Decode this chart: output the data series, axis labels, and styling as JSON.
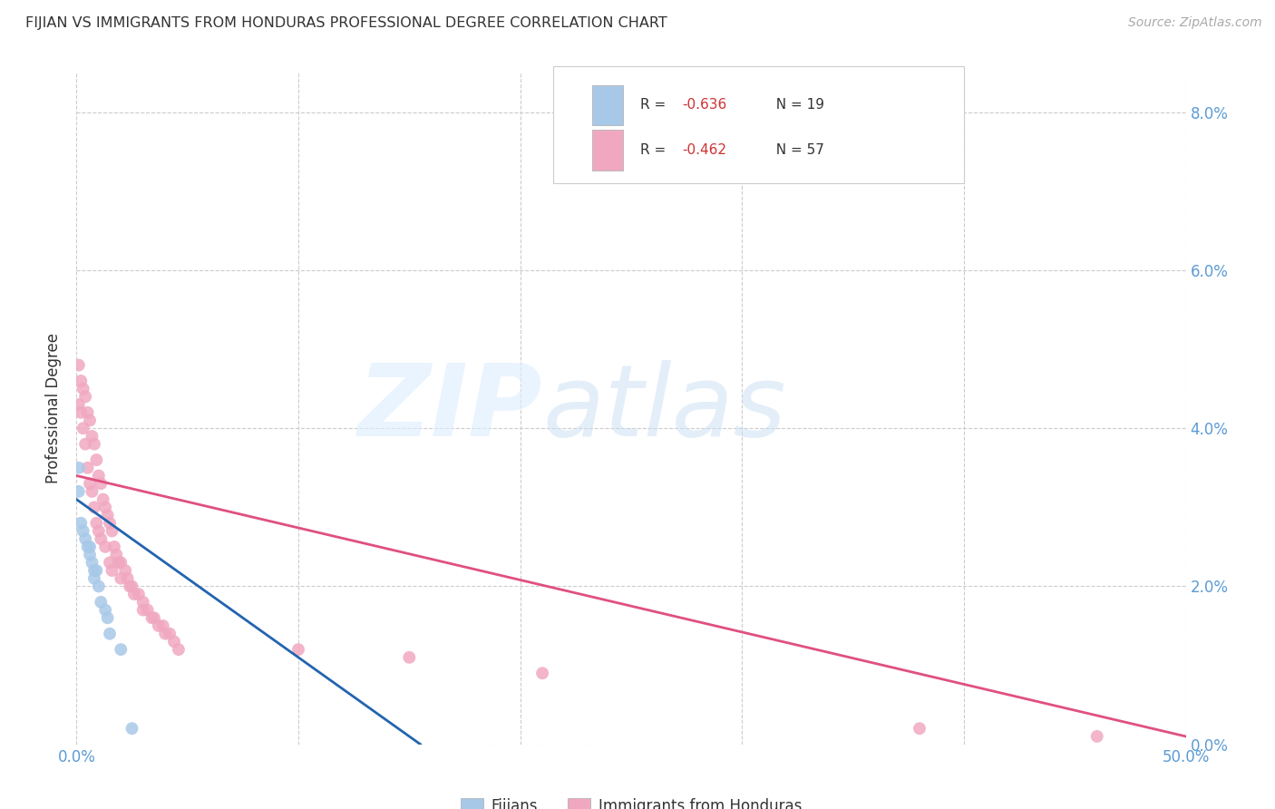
{
  "title": "FIJIAN VS IMMIGRANTS FROM HONDURAS PROFESSIONAL DEGREE CORRELATION CHART",
  "source": "Source: ZipAtlas.com",
  "ylabel": "Professional Degree",
  "legend1_r": "R = -0.636",
  "legend1_n": "N = 19",
  "legend2_r": "R = -0.462",
  "legend2_n": "N = 57",
  "legend_bottom1": "Fijians",
  "legend_bottom2": "Immigrants from Honduras",
  "fijian_color": "#a8c8e8",
  "fijian_line_color": "#2264b0",
  "honduras_color": "#f0a8c0",
  "honduras_line_color": "#e05080",
  "background_color": "#ffffff",
  "xlim": [
    0.0,
    0.5
  ],
  "ylim": [
    0.0,
    0.085
  ],
  "x_ticks": [
    0.0,
    0.1,
    0.2,
    0.3,
    0.4,
    0.5
  ],
  "y_ticks": [
    0.0,
    0.02,
    0.04,
    0.06,
    0.08
  ],
  "fijians_x": [
    0.001,
    0.001,
    0.002,
    0.003,
    0.004,
    0.005,
    0.006,
    0.006,
    0.007,
    0.008,
    0.008,
    0.009,
    0.01,
    0.011,
    0.013,
    0.014,
    0.015,
    0.02,
    0.025
  ],
  "fijians_y": [
    0.035,
    0.032,
    0.028,
    0.027,
    0.026,
    0.025,
    0.025,
    0.024,
    0.023,
    0.022,
    0.021,
    0.022,
    0.02,
    0.018,
    0.017,
    0.016,
    0.014,
    0.012,
    0.002
  ],
  "honduras_x": [
    0.001,
    0.001,
    0.002,
    0.002,
    0.003,
    0.003,
    0.004,
    0.004,
    0.005,
    0.005,
    0.006,
    0.006,
    0.007,
    0.007,
    0.008,
    0.008,
    0.009,
    0.009,
    0.01,
    0.01,
    0.011,
    0.011,
    0.012,
    0.013,
    0.013,
    0.014,
    0.015,
    0.015,
    0.016,
    0.016,
    0.017,
    0.018,
    0.019,
    0.02,
    0.02,
    0.022,
    0.023,
    0.024,
    0.025,
    0.026,
    0.028,
    0.03,
    0.03,
    0.032,
    0.034,
    0.035,
    0.037,
    0.039,
    0.04,
    0.042,
    0.044,
    0.046,
    0.1,
    0.15,
    0.21,
    0.38,
    0.46
  ],
  "honduras_y": [
    0.048,
    0.043,
    0.046,
    0.042,
    0.045,
    0.04,
    0.044,
    0.038,
    0.042,
    0.035,
    0.041,
    0.033,
    0.039,
    0.032,
    0.038,
    0.03,
    0.036,
    0.028,
    0.034,
    0.027,
    0.033,
    0.026,
    0.031,
    0.03,
    0.025,
    0.029,
    0.028,
    0.023,
    0.027,
    0.022,
    0.025,
    0.024,
    0.023,
    0.023,
    0.021,
    0.022,
    0.021,
    0.02,
    0.02,
    0.019,
    0.019,
    0.018,
    0.017,
    0.017,
    0.016,
    0.016,
    0.015,
    0.015,
    0.014,
    0.014,
    0.013,
    0.012,
    0.012,
    0.011,
    0.009,
    0.002,
    0.001
  ],
  "fijian_marker_size": 100,
  "honduras_marker_size": 100,
  "fij_line_x": [
    0.0,
    0.155
  ],
  "fij_line_y": [
    0.031,
    0.0
  ],
  "hon_line_x": [
    0.0,
    0.5
  ],
  "hon_line_y": [
    0.034,
    0.001
  ]
}
